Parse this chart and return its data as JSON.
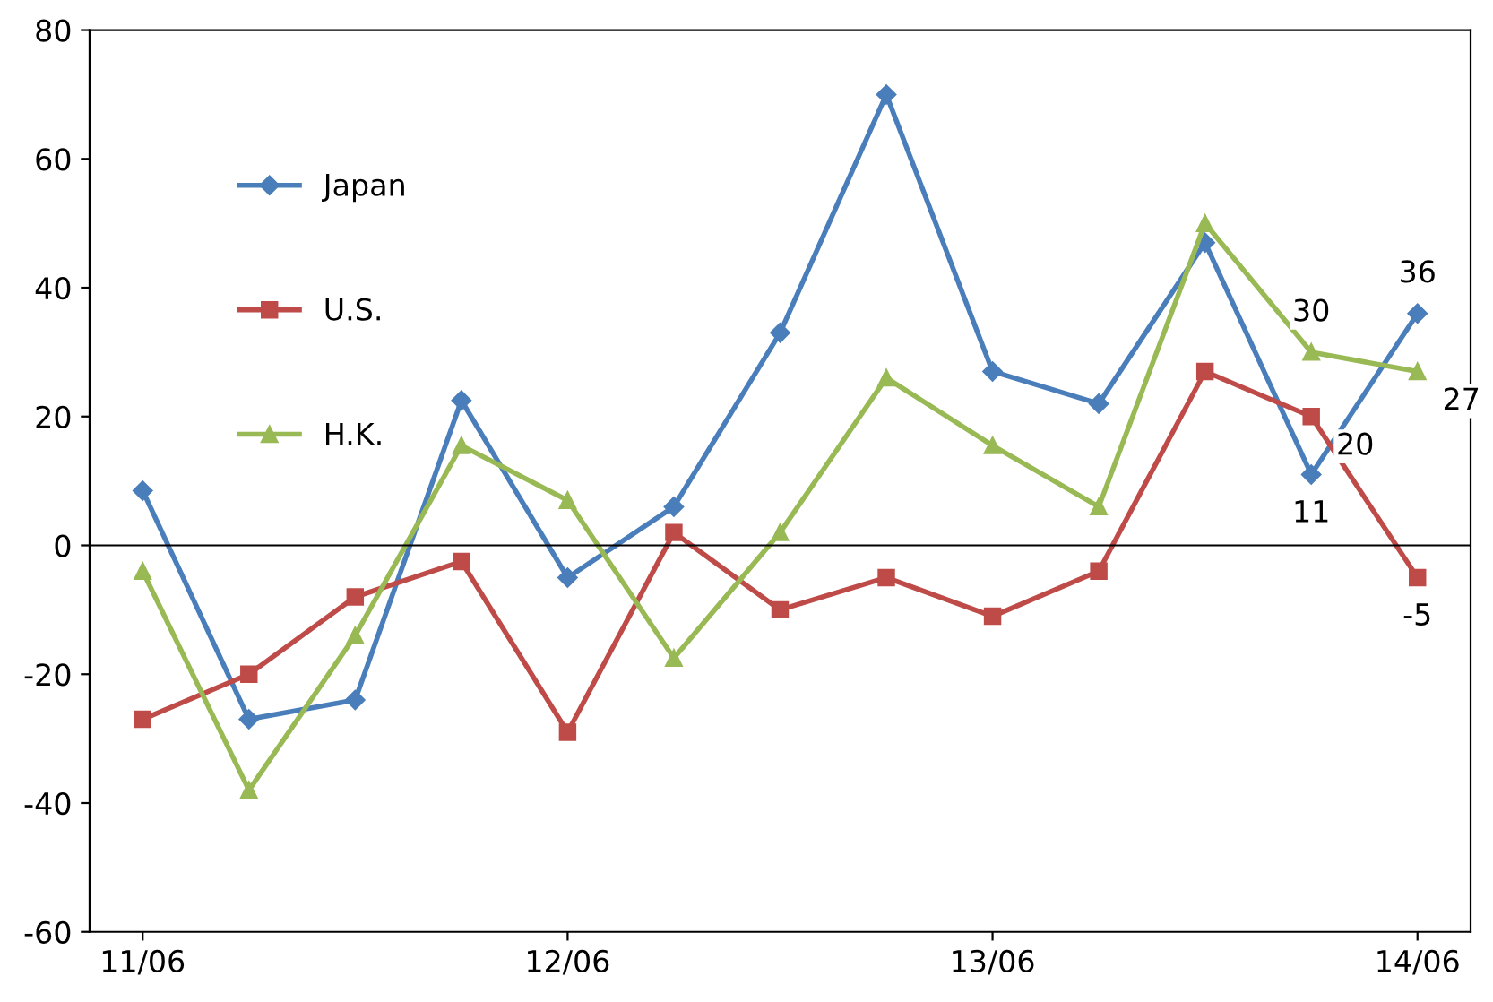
{
  "chart_data": {
    "type": "line",
    "categories": [
      "11/06",
      null,
      null,
      null,
      "12/06",
      null,
      null,
      null,
      "13/06",
      null,
      null,
      null,
      "14/06"
    ],
    "series": [
      {
        "name": "Japan",
        "color": "#4a7ebb",
        "marker": "diamond",
        "values": [
          8.5,
          -27,
          -24,
          22.5,
          -5,
          6,
          33,
          70,
          27,
          22,
          47,
          11,
          36
        ],
        "value_labels": [
          null,
          null,
          null,
          null,
          null,
          null,
          null,
          null,
          null,
          null,
          null,
          "11",
          "36"
        ]
      },
      {
        "name": "U.S.",
        "color": "#be4b48",
        "marker": "square",
        "values": [
          -27,
          -20,
          -8,
          -2.5,
          -29,
          2,
          -10,
          -5,
          -11,
          -4,
          27,
          20,
          -5
        ],
        "value_labels": [
          null,
          null,
          null,
          null,
          null,
          null,
          null,
          null,
          null,
          null,
          null,
          "20",
          "-5"
        ]
      },
      {
        "name": "H.K.",
        "color": "#98b954",
        "marker": "triangle",
        "values": [
          -4,
          -38,
          -14,
          15.5,
          7,
          -17.5,
          2,
          26,
          15.5,
          6,
          50,
          30,
          27
        ],
        "value_labels": [
          null,
          null,
          null,
          null,
          null,
          null,
          null,
          null,
          null,
          null,
          null,
          "30",
          "27"
        ]
      }
    ],
    "ylim": [
      -60,
      80
    ],
    "yticks": [
      -60,
      -40,
      -20,
      0,
      20,
      40,
      60,
      80
    ],
    "ref_lines": [
      {
        "axis": "y",
        "value": 0,
        "color": "#000000"
      }
    ],
    "grid": false,
    "legend": "top left"
  }
}
